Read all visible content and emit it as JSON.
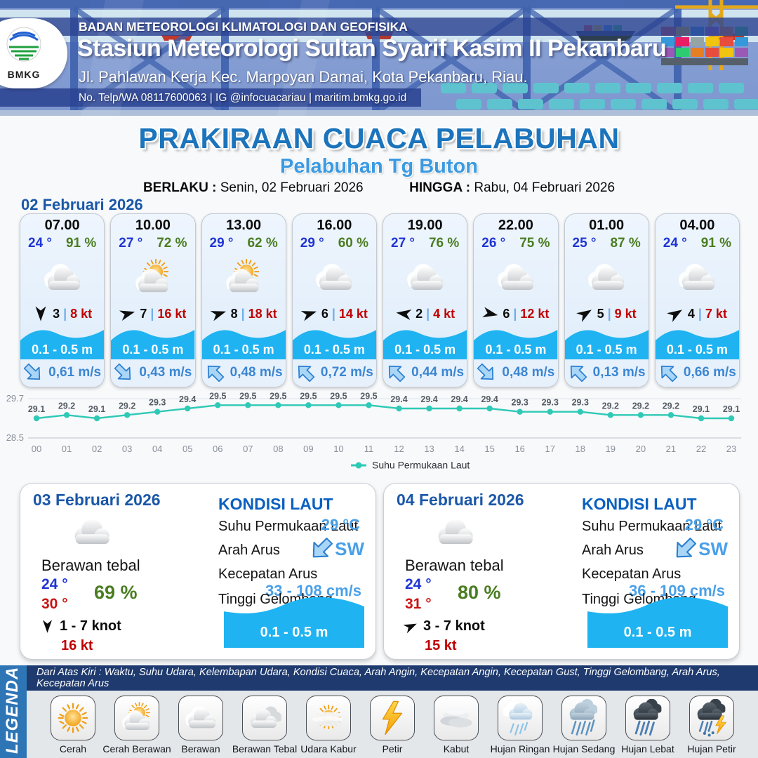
{
  "colors": {
    "title_blue": "#1b74bc",
    "subtitle_blue": "#3b9ae1",
    "date_blue": "#1a57a8",
    "temp_blue": "#1f35d4",
    "humidity_green": "#4a7d21",
    "gust_red": "#c00000",
    "wave_blue": "#1fb3f2",
    "current_blue": "#3c86d2",
    "sea_value_blue": "#4aa0e8",
    "chart_teal": "#2fc9b6",
    "legend_strip_blue": "#2e75b6",
    "legend_info_navy": "#1e3a6e"
  },
  "header": {
    "agency": "BADAN METEOROLOGI KLIMATOLOGI DAN GEOFISIKA",
    "station": "Stasiun Meteorologi Sultan Syarif Kasim II Pekanbaru",
    "address": "Jl. Pahlawan Kerja Kec. Marpoyan Damai, Kota Pekanbaru, Riau.",
    "contact": "No. Telp/WA 08117600063 | IG @infocuacariau | maritim.bmkg.go.id",
    "logo_text": "BMKG"
  },
  "title": {
    "main": "PRAKIRAAN CUACA PELABUHAN",
    "subtitle": "Pelabuhan Tg Buton",
    "berlaku_label": "BERLAKU :",
    "berlaku_value": "Senin, 02 Februari 2026",
    "hingga_label": "HINGGA :",
    "hingga_value": "Rabu, 04 Februari 2026"
  },
  "ui": {
    "separator": "|"
  },
  "day1": {
    "date": "02 Februari 2026",
    "cards": [
      {
        "time": "07.00",
        "temp": "24 °",
        "humidity": "91 %",
        "icon": "cloud",
        "wind_deg": 90,
        "wind": "3",
        "gust": "8 kt",
        "wave": "0.1 - 0.5 m",
        "current_deg": 135,
        "current": "0,61 m/s"
      },
      {
        "time": "10.00",
        "temp": "27 °",
        "humidity": "72 %",
        "icon": "cloud-sun",
        "wind_deg": -15,
        "wind": "7",
        "gust": "16 kt",
        "wave": "0.1 - 0.5 m",
        "current_deg": 135,
        "current": "0,43 m/s"
      },
      {
        "time": "13.00",
        "temp": "29 °",
        "humidity": "62 %",
        "icon": "cloud-sun",
        "wind_deg": -18,
        "wind": "8",
        "gust": "18 kt",
        "wave": "0.1 - 0.5 m",
        "current_deg": -45,
        "current": "0,48 m/s"
      },
      {
        "time": "16.00",
        "temp": "29 °",
        "humidity": "60 %",
        "icon": "cloud",
        "wind_deg": -18,
        "wind": "6",
        "gust": "14 kt",
        "wave": "0.1 - 0.5 m",
        "current_deg": -45,
        "current": "0,72 m/s"
      },
      {
        "time": "19.00",
        "temp": "27 °",
        "humidity": "76 %",
        "icon": "cloud",
        "wind_deg": 188,
        "wind": "2",
        "gust": "4 kt",
        "wave": "0.1 - 0.5 m",
        "current_deg": -45,
        "current": "0,44 m/s"
      },
      {
        "time": "22.00",
        "temp": "26 °",
        "humidity": "75 %",
        "icon": "cloud",
        "wind_deg": 12,
        "wind": "6",
        "gust": "12 kt",
        "wave": "0.1 - 0.5 m",
        "current_deg": 135,
        "current": "0,48 m/s"
      },
      {
        "time": "01.00",
        "temp": "25 °",
        "humidity": "87 %",
        "icon": "cloud",
        "wind_deg": -32,
        "wind": "5",
        "gust": "9 kt",
        "wave": "0.1 - 0.5 m",
        "current_deg": -45,
        "current": "0,13 m/s"
      },
      {
        "time": "04.00",
        "temp": "24 °",
        "humidity": "91 %",
        "icon": "cloud",
        "wind_deg": -32,
        "wind": "4",
        "gust": "7 kt",
        "wave": "0.1 - 0.5 m",
        "current_deg": -45,
        "current": "0,66 m/s"
      }
    ]
  },
  "chart_data": {
    "type": "line",
    "title": "",
    "x": [
      "00",
      "01",
      "02",
      "03",
      "04",
      "05",
      "06",
      "07",
      "08",
      "09",
      "10",
      "11",
      "12",
      "13",
      "14",
      "15",
      "16",
      "17",
      "18",
      "19",
      "20",
      "21",
      "22",
      "23"
    ],
    "series": [
      {
        "name": "Suhu Permukaan Laut",
        "values": [
          29.1,
          29.2,
          29.1,
          29.2,
          29.3,
          29.4,
          29.5,
          29.5,
          29.5,
          29.5,
          29.5,
          29.5,
          29.4,
          29.4,
          29.4,
          29.4,
          29.3,
          29.3,
          29.3,
          29.2,
          29.2,
          29.2,
          29.1,
          29.1
        ]
      }
    ],
    "ylim": [
      28.5,
      29.7
    ],
    "yticks": [
      29.7,
      28.5
    ],
    "grid": "horizontal",
    "legend_position": "bottom",
    "line_color": "#2fc9b6"
  },
  "day_cards": [
    {
      "date": "03 Februari 2026",
      "icon": "cloud",
      "condition": "Berawan tebal",
      "temp_min": "24 °",
      "temp_max": "30 °",
      "humidity": "69 %",
      "wind_deg": 90,
      "wind_range": "1 - 7 knot",
      "gust": "16 kt",
      "sea": {
        "heading": "KONDISI LAUT",
        "sst_label": "Suhu Permukaan Laut",
        "sst_value": "29 °C",
        "arah_label": "Arah Arus",
        "arah_value": "SW",
        "arah_deg": -135,
        "kec_label": "Kecepatan Arus",
        "kec_value": "33 - 108 cm/s",
        "wave_label": "Tinggi Gelombang",
        "wave_value": "0.1 - 0.5 m"
      }
    },
    {
      "date": "04 Februari 2026",
      "icon": "cloud",
      "condition": "Berawan tebal",
      "temp_min": "24 °",
      "temp_max": "31 °",
      "humidity": "80 %",
      "wind_deg": -25,
      "wind_range": "3 - 7 knot",
      "gust": "15 kt",
      "sea": {
        "heading": "KONDISI LAUT",
        "sst_label": "Suhu Permukaan Laut",
        "sst_value": "29 °C",
        "arah_label": "Arah Arus",
        "arah_value": "SW",
        "arah_deg": -135,
        "kec_label": "Kecepatan Arus",
        "kec_value": "36 - 109 cm/s",
        "wave_label": "Tinggi Gelombang",
        "wave_value": "0.1 - 0.5 m"
      }
    }
  ],
  "legend": {
    "title": "LEGENDA",
    "info": "Dari Atas Kiri : Waktu, Suhu Udara, Kelembapan Udara, Kondisi Cuaca, Arah Angin, Kecepatan Angin, Kecepatan Gust, Tinggi Gelombang, Arah Arus, Kecepatan Arus",
    "items": [
      {
        "label": "Cerah",
        "icon": "sun"
      },
      {
        "label": "Cerah Berawan",
        "icon": "cloud-sun"
      },
      {
        "label": "Berawan",
        "icon": "cloud"
      },
      {
        "label": "Berawan Tebal",
        "icon": "clouds"
      },
      {
        "label": "Udara Kabur",
        "icon": "haze"
      },
      {
        "label": "Petir",
        "icon": "bolt"
      },
      {
        "label": "Kabut",
        "icon": "fog"
      },
      {
        "label": "Hujan Ringan",
        "icon": "rain-light"
      },
      {
        "label": "Hujan Sedang",
        "icon": "rain-med"
      },
      {
        "label": "Hujan Lebat",
        "icon": "rain-heavy"
      },
      {
        "label": "Hujan Petir",
        "icon": "storm"
      }
    ]
  }
}
